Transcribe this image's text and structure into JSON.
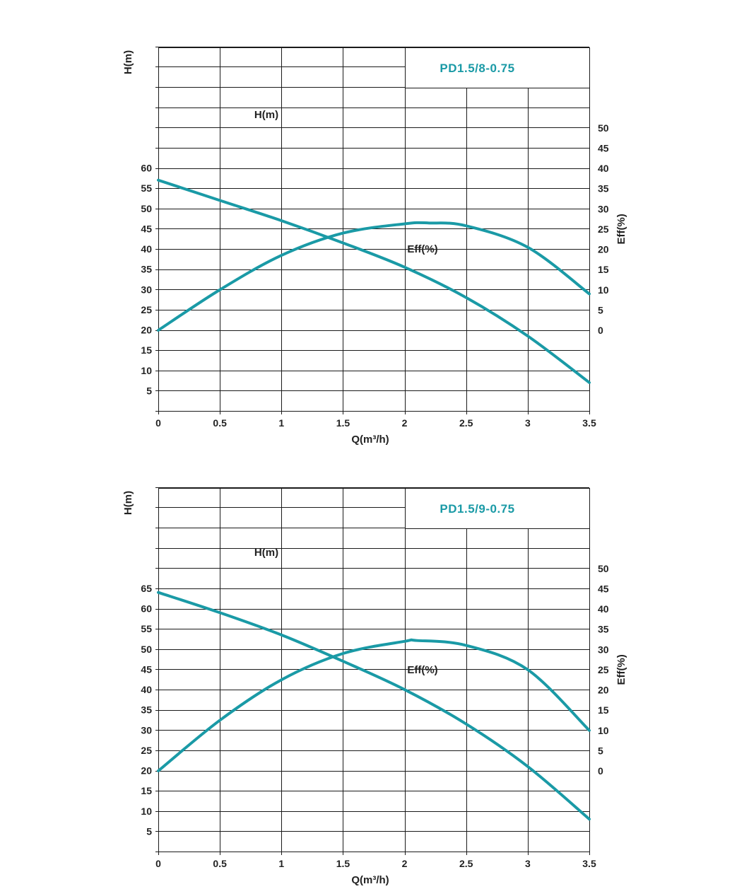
{
  "chart_data": [
    {
      "type": "line",
      "title": "PD1.5/8-0.75",
      "xlabel": "Q(m³/h)",
      "ylabel_left": "H(m)",
      "ylabel_right": "Eff(%)",
      "x_ticks": [
        "0",
        "0.5",
        "1",
        "1.5",
        "2",
        "2.5",
        "3",
        "3.5"
      ],
      "x_ticks_values": [
        0,
        0.5,
        1,
        1.5,
        2,
        2.5,
        3,
        3.5
      ],
      "xlim": [
        0,
        3.5
      ],
      "y_left_ticks": [
        "5",
        "10",
        "15",
        "20",
        "25",
        "30",
        "35",
        "40",
        "45",
        "50",
        "55",
        "60"
      ],
      "y_left_ticks_values": [
        5,
        10,
        15,
        20,
        25,
        30,
        35,
        40,
        45,
        50,
        55,
        60
      ],
      "y_right_ticks": [
        "0",
        "5",
        "10",
        "15",
        "20",
        "25",
        "30",
        "35",
        "40",
        "45",
        "50"
      ],
      "y_right_ticks_values": [
        0,
        5,
        10,
        15,
        20,
        25,
        30,
        35,
        40,
        45,
        50
      ],
      "grid": true,
      "series": [
        {
          "name": "H(m)",
          "axis": "left",
          "color": "#1a9aa6",
          "x": [
            0,
            0.5,
            1,
            1.5,
            2,
            2.5,
            3,
            3.5
          ],
          "values": [
            57,
            52,
            47,
            41.5,
            35.5,
            28,
            18.5,
            7
          ]
        },
        {
          "name": "Eff(%)",
          "axis": "right",
          "color": "#1a9aa6",
          "x": [
            0,
            0.5,
            1,
            1.5,
            2,
            2.2,
            2.5,
            3,
            3.5
          ],
          "values": [
            0,
            10,
            18.5,
            24,
            26.3,
            26.5,
            25.8,
            20.5,
            9
          ]
        }
      ]
    },
    {
      "type": "line",
      "title": "PD1.5/9-0.75",
      "xlabel": "Q(m³/h)",
      "ylabel_left": "H(m)",
      "ylabel_right": "Eff(%)",
      "x_ticks": [
        "0",
        "0.5",
        "1",
        "1.5",
        "2",
        "2.5",
        "3",
        "3.5"
      ],
      "x_ticks_values": [
        0,
        0.5,
        1,
        1.5,
        2,
        2.5,
        3,
        3.5
      ],
      "xlim": [
        0,
        3.5
      ],
      "y_left_ticks": [
        "5",
        "10",
        "15",
        "20",
        "25",
        "30",
        "35",
        "40",
        "45",
        "50",
        "55",
        "60",
        "65"
      ],
      "y_left_ticks_values": [
        5,
        10,
        15,
        20,
        25,
        30,
        35,
        40,
        45,
        50,
        55,
        60,
        65
      ],
      "y_right_ticks": [
        "0",
        "5",
        "10",
        "15",
        "20",
        "25",
        "30",
        "35",
        "40",
        "45",
        "50"
      ],
      "y_right_ticks_values": [
        0,
        5,
        10,
        15,
        20,
        25,
        30,
        35,
        40,
        45,
        50
      ],
      "grid": true,
      "series": [
        {
          "name": "H(m)",
          "axis": "left",
          "color": "#1a9aa6",
          "x": [
            0,
            0.5,
            1,
            1.5,
            2,
            2.5,
            3,
            3.5
          ],
          "values": [
            64,
            59,
            53.5,
            47,
            40,
            31.5,
            21,
            8
          ]
        },
        {
          "name": "Eff(%)",
          "axis": "right",
          "color": "#1a9aa6",
          "x": [
            0,
            0.5,
            1,
            1.5,
            2,
            2.1,
            2.5,
            3,
            3.5
          ],
          "values": [
            0,
            12.5,
            22.5,
            29,
            32,
            32.2,
            31,
            25,
            10
          ]
        }
      ]
    }
  ]
}
